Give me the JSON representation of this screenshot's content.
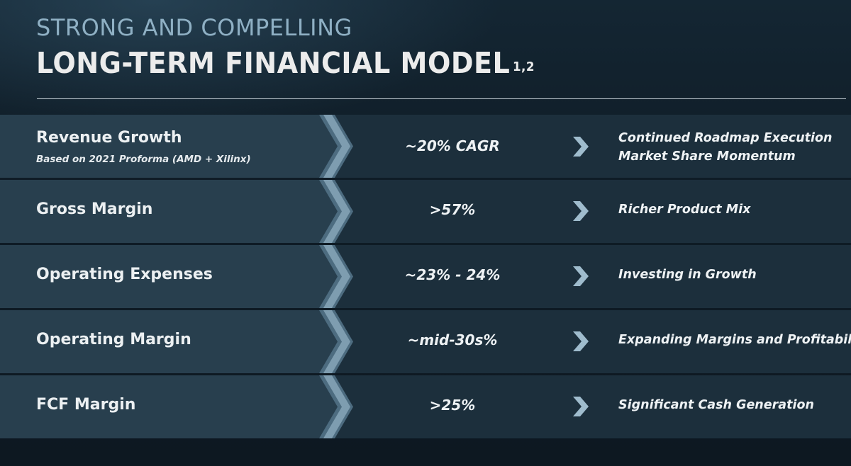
{
  "header": {
    "kicker": "STRONG AND COMPELLING",
    "title": "LONG-TERM FINANCIAL MODEL",
    "footnote": "1,2"
  },
  "rows": [
    {
      "metric": "Revenue Growth",
      "subtitle": "Based on 2021 Proforma (AMD + Xilinx)",
      "value": "~20% CAGR",
      "drivers": [
        "Continued Roadmap Execution",
        "Market Share Momentum"
      ]
    },
    {
      "metric": "Gross Margin",
      "value": ">57%",
      "drivers": [
        "Richer Product Mix"
      ]
    },
    {
      "metric": "Operating Expenses",
      "value": "~23% - 24%",
      "drivers": [
        "Investing in Growth"
      ]
    },
    {
      "metric": "Operating Margin",
      "value": "~mid-30s%",
      "drivers": [
        "Expanding Margins and Profitability"
      ]
    },
    {
      "metric": "FCF Margin",
      "value": ">25%",
      "drivers": [
        "Significant Cash Generation"
      ]
    }
  ],
  "colors": {
    "background": "#0f1c26",
    "row": "#1c2f3c",
    "row_left": "#283f4e",
    "kicker": "#8fb0c4",
    "chevron_light": "#9fbccd",
    "chevron_dark": "#4d6c80"
  },
  "icons": {
    "large_chevron": "chevron-right-icon",
    "small_chevron": "chevron-right-icon"
  }
}
